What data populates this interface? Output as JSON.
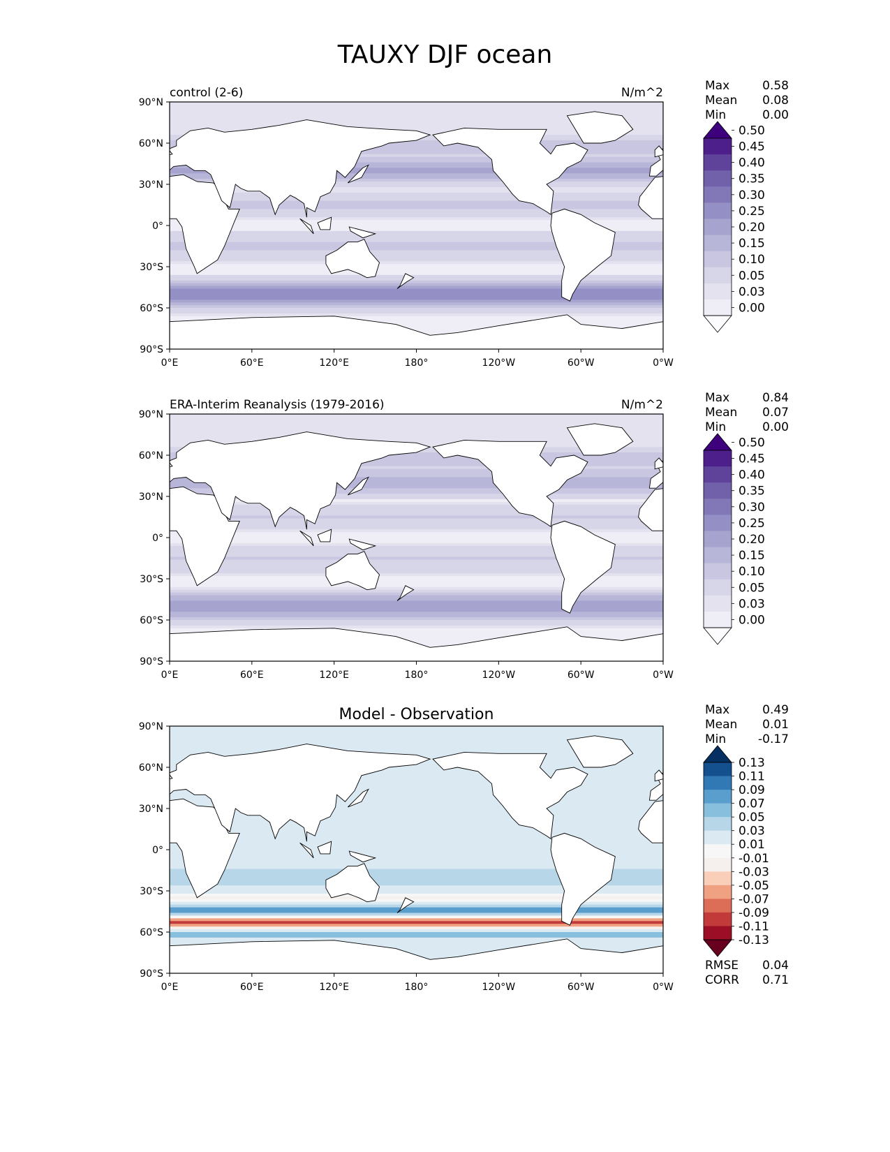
{
  "figure_title": "TAUXY DJF ocean",
  "colors": {
    "purple_scale": [
      "#fcfbfd",
      "#efedf5",
      "#e4e2ef",
      "#d7d5e8",
      "#c8c6e0",
      "#b7b5d8",
      "#a6a3cf",
      "#948fc4",
      "#8378b7",
      "#7160aa",
      "#5f439b",
      "#4d1f8a",
      "#3f007d"
    ],
    "diff_scale": [
      "#67001f",
      "#9b0e25",
      "#c23a3a",
      "#dc6e58",
      "#f0a182",
      "#f9cfba",
      "#f5f0ee",
      "#f7f7f7",
      "#dbe9f2",
      "#b7d6e8",
      "#88bfdc",
      "#5a9ecd",
      "#3179b5",
      "#15508e",
      "#053061"
    ],
    "land": "#ffffff",
    "coast": "#000000"
  },
  "chart_data": [
    {
      "type": "heatmap",
      "projection": "PlateCarree",
      "title_left": "control (2-6)",
      "title_right": "N/m^2",
      "stats": [
        {
          "label": "Max",
          "value": "0.58"
        },
        {
          "label": "Mean",
          "value": "0.08"
        },
        {
          "label": "Min",
          "value": "0.00"
        }
      ],
      "x_ticks": [
        "0°E",
        "60°E",
        "120°E",
        "180°",
        "120°W",
        "60°W",
        "0°W"
      ],
      "y_ticks": [
        "90°N",
        "60°N",
        "30°N",
        "0°",
        "30°S",
        "60°S",
        "90°S"
      ],
      "xlim": [
        0,
        360
      ],
      "ylim": [
        -90,
        90
      ],
      "colorbar": {
        "levels": [
          "0.00",
          "0.03",
          "0.05",
          "0.10",
          "0.15",
          "0.20",
          "0.25",
          "0.30",
          "0.35",
          "0.40",
          "0.45",
          "0.50"
        ],
        "extend": "both",
        "scale": "purple"
      },
      "field_values": {
        "southern_ocean_max": 0.25,
        "tropics_typical": 0.08,
        "north_pacific_max": 0.2
      }
    },
    {
      "type": "heatmap",
      "projection": "PlateCarree",
      "title_left": "ERA-Interim Reanalysis (1979-2016)",
      "title_right": "N/m^2",
      "stats": [
        {
          "label": "Max",
          "value": "0.84"
        },
        {
          "label": "Mean",
          "value": "0.07"
        },
        {
          "label": "Min",
          "value": "0.00"
        }
      ],
      "x_ticks": [
        "0°E",
        "60°E",
        "120°E",
        "180°",
        "120°W",
        "60°W",
        "0°W"
      ],
      "y_ticks": [
        "90°N",
        "60°N",
        "30°N",
        "0°",
        "30°S",
        "60°S",
        "90°S"
      ],
      "xlim": [
        0,
        360
      ],
      "ylim": [
        -90,
        90
      ],
      "colorbar": {
        "levels": [
          "0.00",
          "0.03",
          "0.05",
          "0.10",
          "0.15",
          "0.20",
          "0.25",
          "0.30",
          "0.35",
          "0.40",
          "0.45",
          "0.50"
        ],
        "extend": "both",
        "scale": "purple"
      },
      "field_values": {
        "southern_ocean_max": 0.22,
        "tropics_typical": 0.07,
        "north_pacific_max": 0.18
      }
    },
    {
      "type": "heatmap",
      "projection": "PlateCarree",
      "title_center": "Model - Observation",
      "stats": [
        {
          "label": "Max",
          "value": "0.49"
        },
        {
          "label": "Mean",
          "value": "0.01"
        },
        {
          "label": "Min",
          "value": "-0.17"
        }
      ],
      "extra_stats": [
        {
          "label": "RMSE",
          "value": "0.04"
        },
        {
          "label": "CORR",
          "value": "0.71"
        }
      ],
      "x_ticks": [
        "0°E",
        "60°E",
        "120°E",
        "180°",
        "120°W",
        "60°W",
        "0°W"
      ],
      "y_ticks": [
        "90°N",
        "60°N",
        "30°N",
        "0°",
        "30°S",
        "60°S",
        "90°S"
      ],
      "xlim": [
        0,
        360
      ],
      "ylim": [
        -90,
        90
      ],
      "colorbar": {
        "levels": [
          "-0.13",
          "-0.11",
          "-0.09",
          "-0.07",
          "-0.05",
          "-0.03",
          "-0.01",
          "0.01",
          "0.03",
          "0.05",
          "0.07",
          "0.09",
          "0.11",
          "0.13"
        ],
        "extend": "both",
        "scale": "diff"
      },
      "field_values": {
        "band_55S": -0.11,
        "band_45S": 0.07,
        "band_62S": 0.05,
        "tropics_typical": 0.01
      }
    }
  ]
}
